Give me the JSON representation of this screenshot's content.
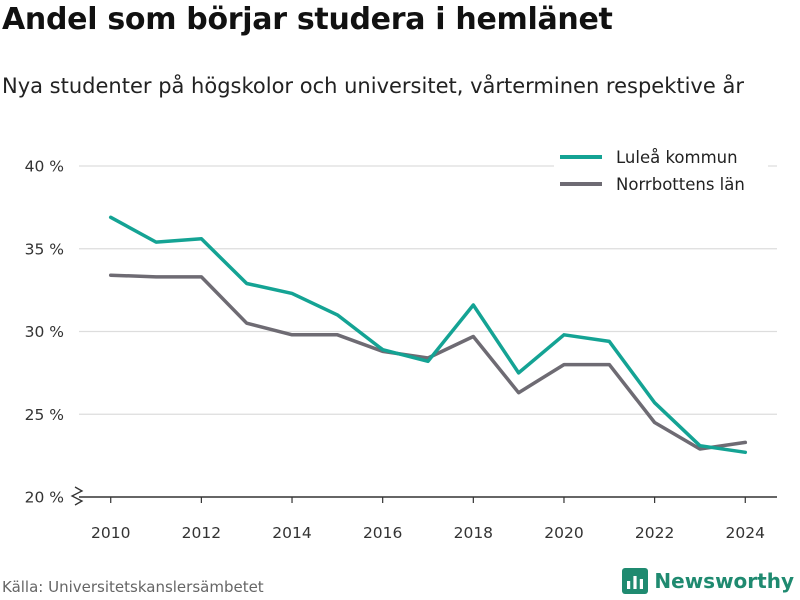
{
  "title": "Andel som börjar studera i hemlänet",
  "subtitle": "Nya studenter på högskolor och universitet, vårterminen respektive år",
  "source": "Källa: Universitetskanslersämbetet",
  "brand": "Newsworthy",
  "colors": {
    "series_1": "#14a394",
    "series_2": "#6e6b73",
    "grid": "#dddddd",
    "axis": "#333333",
    "brand": "#1f8a70"
  },
  "chart_data": {
    "type": "line",
    "title": "",
    "xlabel": "",
    "ylabel": "",
    "x": [
      2010,
      2011,
      2012,
      2013,
      2014,
      2015,
      2016,
      2017,
      2018,
      2019,
      2020,
      2021,
      2022,
      2023,
      2024
    ],
    "series": [
      {
        "name": "Luleå kommun",
        "values": [
          36.9,
          35.4,
          35.6,
          32.9,
          32.3,
          31.0,
          28.9,
          28.2,
          31.6,
          27.5,
          29.8,
          29.4,
          25.7,
          23.1,
          22.7
        ]
      },
      {
        "name": "Norrbottens län",
        "values": [
          33.4,
          33.3,
          33.3,
          30.5,
          29.8,
          29.8,
          28.8,
          28.4,
          29.7,
          26.3,
          28.0,
          28.0,
          24.5,
          22.9,
          23.3
        ]
      }
    ],
    "ylim": [
      20,
      40
    ],
    "xlim": [
      2009.3,
      2024.7
    ],
    "y_ticks": [
      20,
      25,
      30,
      35,
      40
    ],
    "y_tick_labels": [
      "20 %",
      "25 %",
      "30 %",
      "35 %",
      "40 %"
    ],
    "x_ticks": [
      2010,
      2012,
      2014,
      2016,
      2018,
      2020,
      2022,
      2024
    ],
    "x_tick_labels": [
      "2010",
      "2012",
      "2014",
      "2016",
      "2018",
      "2020",
      "2022",
      "2024"
    ],
    "y_axis_break": true,
    "grid": "horizontal",
    "legend_position": "top-right"
  }
}
